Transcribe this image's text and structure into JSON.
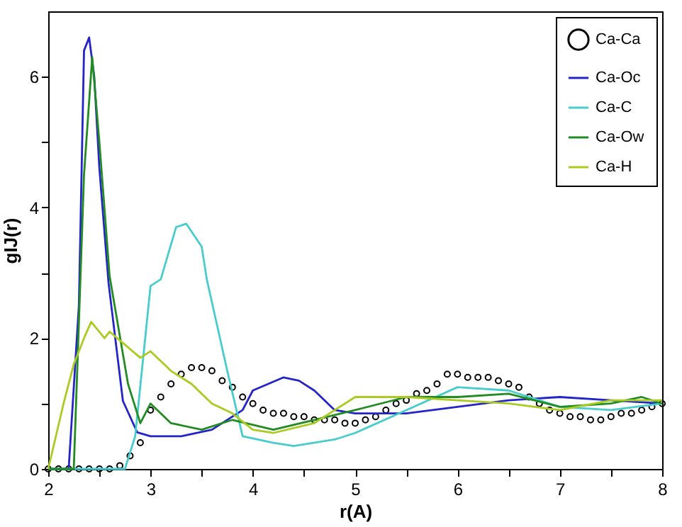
{
  "chart_data": {
    "type": "line",
    "xlabel": "r(A)",
    "ylabel": "gIJ(r)",
    "xlim": [
      2,
      8
    ],
    "ylim": [
      0,
      7
    ],
    "xticks": [
      2,
      {
        "value": 2.5,
        "label": null
      },
      3,
      {
        "value": 3.5,
        "label": null
      },
      4,
      {
        "value": 4.5,
        "label": null
      },
      5,
      {
        "value": 5.5,
        "label": null
      },
      6,
      {
        "value": 6.5,
        "label": null
      },
      7,
      {
        "value": 7.5,
        "label": null
      },
      8
    ],
    "yticks": [
      0,
      {
        "value": 1,
        "label": null
      },
      2,
      {
        "value": 3,
        "label": null
      },
      4,
      {
        "value": 5,
        "label": null
      },
      6
    ],
    "legend": "top right",
    "grid": false,
    "series": [
      {
        "name": "Ca-Ca",
        "type": "scatter",
        "marker": "circle",
        "color": "#000000",
        "x": [
          2.0,
          2.1,
          2.2,
          2.3,
          2.4,
          2.5,
          2.6,
          2.7,
          2.8,
          2.9,
          3.0,
          3.1,
          3.2,
          3.3,
          3.4,
          3.5,
          3.6,
          3.7,
          3.8,
          3.9,
          4.0,
          4.1,
          4.2,
          4.3,
          4.4,
          4.5,
          4.6,
          4.7,
          4.8,
          4.9,
          5.0,
          5.1,
          5.2,
          5.3,
          5.4,
          5.5,
          5.6,
          5.7,
          5.8,
          5.9,
          6.0,
          6.1,
          6.2,
          6.3,
          6.4,
          6.5,
          6.6,
          6.7,
          6.8,
          6.9,
          7.0,
          7.1,
          7.2,
          7.3,
          7.4,
          7.5,
          7.6,
          7.7,
          7.8,
          7.9,
          8.0
        ],
        "values": [
          0,
          0,
          0,
          0,
          0,
          0,
          0,
          0.05,
          0.2,
          0.4,
          0.9,
          1.1,
          1.3,
          1.45,
          1.55,
          1.55,
          1.5,
          1.35,
          1.25,
          1.1,
          1.0,
          0.9,
          0.85,
          0.85,
          0.8,
          0.8,
          0.75,
          0.75,
          0.75,
          0.7,
          0.7,
          0.75,
          0.8,
          0.9,
          1.0,
          1.05,
          1.15,
          1.2,
          1.3,
          1.45,
          1.45,
          1.4,
          1.4,
          1.4,
          1.35,
          1.3,
          1.25,
          1.1,
          1.0,
          0.9,
          0.85,
          0.8,
          0.8,
          0.75,
          0.75,
          0.8,
          0.85,
          0.85,
          0.9,
          0.95,
          1.0
        ]
      },
      {
        "name": "Ca-Oc",
        "color": "#2424c8",
        "x": [
          2.0,
          2.2,
          2.3,
          2.35,
          2.4,
          2.45,
          2.5,
          2.59,
          2.73,
          2.87,
          3.0,
          3.3,
          3.6,
          3.9,
          4.0,
          4.15,
          4.3,
          4.45,
          4.6,
          4.8,
          5.0,
          5.5,
          6.0,
          6.5,
          7.0,
          7.5,
          8.0
        ],
        "values": [
          0,
          0,
          2.5,
          6.4,
          6.6,
          6.0,
          4.6,
          2.84,
          1.04,
          0.56,
          0.5,
          0.5,
          0.6,
          0.9,
          1.2,
          1.3,
          1.4,
          1.35,
          1.2,
          0.9,
          0.85,
          0.85,
          0.95,
          1.05,
          1.1,
          1.05,
          1.0
        ]
      },
      {
        "name": "Ca-C",
        "color": "#48cccc",
        "x": [
          2.0,
          2.75,
          2.85,
          3.0,
          3.1,
          3.25,
          3.35,
          3.5,
          3.55,
          3.75,
          3.9,
          4.2,
          4.4,
          4.8,
          5.0,
          5.5,
          6.0,
          6.5,
          7.0,
          7.5,
          8.0
        ],
        "values": [
          0,
          0,
          0.5,
          2.8,
          2.9,
          3.7,
          3.75,
          3.4,
          2.9,
          1.5,
          0.5,
          0.4,
          0.35,
          0.45,
          0.55,
          0.9,
          1.25,
          1.2,
          0.95,
          0.9,
          1.0
        ]
      },
      {
        "name": "Ca-Ow",
        "color": "#228b22",
        "x": [
          2.0,
          2.25,
          2.35,
          2.43,
          2.5,
          2.6,
          2.78,
          2.9,
          3.0,
          3.2,
          3.5,
          3.8,
          4.2,
          4.6,
          5.0,
          5.5,
          6.0,
          6.5,
          7.0,
          7.5,
          7.8,
          8.0
        ],
        "values": [
          0,
          0,
          4.5,
          6.3,
          5.0,
          2.95,
          1.3,
          0.7,
          1.0,
          0.7,
          0.6,
          0.75,
          0.6,
          0.75,
          0.9,
          1.1,
          1.1,
          1.15,
          0.95,
          1.0,
          1.1,
          1.0
        ]
      },
      {
        "name": "Ca-H",
        "color": "#aacc22",
        "x": [
          2.0,
          2.15,
          2.25,
          2.35,
          2.42,
          2.55,
          2.6,
          2.75,
          2.9,
          3.0,
          3.2,
          3.4,
          3.6,
          3.8,
          4.0,
          4.2,
          4.6,
          5.0,
          5.5,
          6.0,
          6.5,
          7.0,
          7.5,
          8.0
        ],
        "values": [
          0,
          1.0,
          1.6,
          2.0,
          2.25,
          2.0,
          2.1,
          1.9,
          1.7,
          1.8,
          1.5,
          1.3,
          1.0,
          0.85,
          0.6,
          0.55,
          0.7,
          1.1,
          1.1,
          1.05,
          1.0,
          0.9,
          1.05,
          1.05
        ]
      }
    ]
  }
}
